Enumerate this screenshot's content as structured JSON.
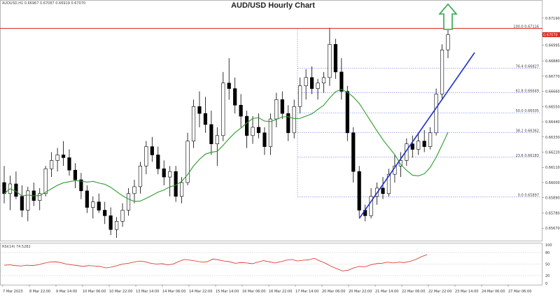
{
  "header": {
    "symbol_info": "AUDUSD,H1  0.66967 0.67087 0.66919 0.67070",
    "title": "AUD/USD Hourly Chart"
  },
  "colors": {
    "bull": "#ffffff",
    "bear": "#000000",
    "wick": "#000000",
    "ma": "#2e9b2e",
    "trendline": "#1f2fc9",
    "fib": "#4a5adb",
    "resistance": "#d9281e",
    "rsi": "#d9281e",
    "arrow": "#2ea84a",
    "price_tag": "#d9281e"
  },
  "chart_data": [
    {
      "type": "candlestick",
      "x_labels": [
        "7 Mar 2023",
        "8 Mar 22:00",
        "9 Mar 14:00",
        "10 Mar 06:00",
        "10 Mar 22:00",
        "13 Mar 14:00",
        "14 Mar 06:00",
        "14 Mar 22:00",
        "15 Mar 14:00",
        "16 Mar 06:00",
        "16 Mar 22:00",
        "17 Mar 14:00",
        "20 Mar 06:00",
        "20 Mar 22:00",
        "21 Mar 14:00",
        "22 Mar 06:00",
        "22 Mar 22:00",
        "23 Mar 14:00",
        "24 Mar 06:00",
        "27 Mar 06:00"
      ],
      "y_ticks": [
        0.6719,
        0.6707,
        0.66995,
        0.6688,
        0.6677,
        0.6666,
        0.6655,
        0.6644,
        0.6633,
        0.6622,
        0.6611,
        0.66,
        0.6589,
        0.6578,
        0.6567
      ],
      "ylim": [
        0.656,
        0.6725
      ],
      "current_price": "0.67070",
      "moving_average": "green line",
      "candles_ohlc": [
        [
          0.66,
          0.6612,
          0.6585,
          0.6592
        ],
        [
          0.6592,
          0.6605,
          0.658,
          0.6599
        ],
        [
          0.6599,
          0.6608,
          0.6588,
          0.659
        ],
        [
          0.659,
          0.6598,
          0.6575,
          0.658
        ],
        [
          0.658,
          0.6597,
          0.6572,
          0.6594
        ],
        [
          0.6594,
          0.66,
          0.6583,
          0.6587
        ],
        [
          0.6587,
          0.6596,
          0.658,
          0.6592
        ],
        [
          0.6592,
          0.6612,
          0.659,
          0.661
        ],
        [
          0.661,
          0.6622,
          0.6604,
          0.6616
        ],
        [
          0.6616,
          0.6625,
          0.6608,
          0.662
        ],
        [
          0.662,
          0.663,
          0.6612,
          0.6618
        ],
        [
          0.6618,
          0.6624,
          0.6605,
          0.6609
        ],
        [
          0.6609,
          0.6614,
          0.6596,
          0.6602
        ],
        [
          0.6602,
          0.6607,
          0.6588,
          0.6594
        ],
        [
          0.6594,
          0.6598,
          0.6578,
          0.6582
        ],
        [
          0.6582,
          0.659,
          0.6574,
          0.6586
        ],
        [
          0.6586,
          0.6592,
          0.6578,
          0.658
        ],
        [
          0.658,
          0.6586,
          0.657,
          0.6576
        ],
        [
          0.6576,
          0.6582,
          0.6562,
          0.6566
        ],
        [
          0.6566,
          0.6575,
          0.656,
          0.6572
        ],
        [
          0.6572,
          0.6585,
          0.6568,
          0.658
        ],
        [
          0.658,
          0.6596,
          0.6576,
          0.6592
        ],
        [
          0.6592,
          0.6602,
          0.6585,
          0.6597
        ],
        [
          0.6597,
          0.6615,
          0.6592,
          0.6612
        ],
        [
          0.6612,
          0.663,
          0.6606,
          0.6626
        ],
        [
          0.6626,
          0.6633,
          0.6615,
          0.662
        ],
        [
          0.662,
          0.6626,
          0.6606,
          0.661
        ],
        [
          0.661,
          0.6616,
          0.6598,
          0.6604
        ],
        [
          0.6604,
          0.6612,
          0.659,
          0.6608
        ],
        [
          0.6608,
          0.6612,
          0.6586,
          0.659
        ],
        [
          0.659,
          0.6604,
          0.6585,
          0.66
        ],
        [
          0.66,
          0.6636,
          0.6598,
          0.663
        ],
        [
          0.663,
          0.666,
          0.6625,
          0.6655
        ],
        [
          0.6655,
          0.6666,
          0.664,
          0.665
        ],
        [
          0.665,
          0.6662,
          0.6636,
          0.6642
        ],
        [
          0.6642,
          0.6652,
          0.662,
          0.6628
        ],
        [
          0.6628,
          0.664,
          0.6612,
          0.6634
        ],
        [
          0.6634,
          0.668,
          0.663,
          0.6672
        ],
        [
          0.6672,
          0.669,
          0.666,
          0.6668
        ],
        [
          0.6668,
          0.6676,
          0.665,
          0.6656
        ],
        [
          0.6656,
          0.6664,
          0.664,
          0.6648
        ],
        [
          0.6648,
          0.6652,
          0.6625,
          0.6634
        ],
        [
          0.6634,
          0.6648,
          0.6628,
          0.664
        ],
        [
          0.664,
          0.665,
          0.6632,
          0.6636
        ],
        [
          0.6636,
          0.664,
          0.662,
          0.6626
        ],
        [
          0.6626,
          0.665,
          0.662,
          0.6646
        ],
        [
          0.6646,
          0.6665,
          0.664,
          0.666
        ],
        [
          0.666,
          0.6666,
          0.6646,
          0.665
        ],
        [
          0.665,
          0.6656,
          0.663,
          0.6636
        ],
        [
          0.6636,
          0.666,
          0.6632,
          0.6655
        ],
        [
          0.6655,
          0.6676,
          0.665,
          0.667
        ],
        [
          0.667,
          0.6682,
          0.666,
          0.6676
        ],
        [
          0.6676,
          0.6684,
          0.6664,
          0.6668
        ],
        [
          0.6668,
          0.6675,
          0.666,
          0.6672
        ],
        [
          0.6672,
          0.668,
          0.6665,
          0.6676
        ],
        [
          0.6676,
          0.6712,
          0.667,
          0.67
        ],
        [
          0.67,
          0.6704,
          0.6675,
          0.668
        ],
        [
          0.668,
          0.669,
          0.666,
          0.6666
        ],
        [
          0.6666,
          0.667,
          0.663,
          0.6636
        ],
        [
          0.6636,
          0.664,
          0.66,
          0.6608
        ],
        [
          0.6608,
          0.6612,
          0.6575,
          0.658
        ],
        [
          0.658,
          0.6584,
          0.6572,
          0.6576
        ],
        [
          0.6576,
          0.6596,
          0.6574,
          0.659
        ],
        [
          0.659,
          0.66,
          0.6584,
          0.6596
        ],
        [
          0.6596,
          0.6604,
          0.6588,
          0.6592
        ],
        [
          0.6592,
          0.661,
          0.659,
          0.6606
        ],
        [
          0.6606,
          0.662,
          0.66,
          0.6612
        ],
        [
          0.6612,
          0.6622,
          0.6604,
          0.6616
        ],
        [
          0.6616,
          0.6632,
          0.6612,
          0.6628
        ],
        [
          0.6628,
          0.6634,
          0.6618,
          0.6624
        ],
        [
          0.6624,
          0.6636,
          0.662,
          0.663
        ],
        [
          0.663,
          0.6638,
          0.6622,
          0.6626
        ],
        [
          0.6626,
          0.664,
          0.6624,
          0.6636
        ],
        [
          0.6636,
          0.6668,
          0.6634,
          0.6664
        ],
        [
          0.6664,
          0.67,
          0.666,
          0.6696
        ],
        [
          0.6696,
          0.6712,
          0.669,
          0.6707
        ]
      ],
      "fibonacci_levels": [
        {
          "label": "100.0 0.67116",
          "value": 0.67116
        },
        {
          "label": "76.4 0.66827",
          "value": 0.66827
        },
        {
          "label": "61.8 0.66649",
          "value": 0.66649
        },
        {
          "label": "50.0 0.66505",
          "value": 0.66505
        },
        {
          "label": "38.2 0.66362",
          "value": 0.66362
        },
        {
          "label": "23.6 0.66183",
          "value": 0.66183
        },
        {
          "label": "0.0 0.65897",
          "value": 0.65897
        }
      ],
      "resistance_level": 0.67116
    },
    {
      "type": "line",
      "indicator_label": "RSI(14) 74.5282",
      "y_ticks": [
        100,
        80,
        50,
        20,
        0
      ],
      "ylim": [
        0,
        100
      ],
      "values": [
        47,
        48,
        46,
        45,
        47,
        46,
        48,
        52,
        55,
        56,
        54,
        50,
        48,
        46,
        44,
        46,
        45,
        44,
        40,
        42,
        46,
        50,
        52,
        55,
        58,
        56,
        52,
        50,
        51,
        48,
        50,
        57,
        62,
        60,
        58,
        55,
        56,
        63,
        61,
        58,
        56,
        52,
        54,
        53,
        51,
        55,
        59,
        56,
        53,
        56,
        60,
        62,
        58,
        60,
        61,
        65,
        58,
        52,
        44,
        38,
        32,
        34,
        40,
        44,
        43,
        48,
        51,
        52,
        55,
        53,
        55,
        54,
        57,
        62,
        69,
        74.5
      ]
    }
  ]
}
